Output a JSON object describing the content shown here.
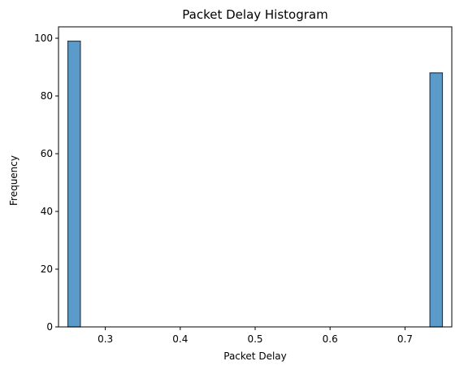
{
  "chart_data": {
    "type": "bar",
    "title": "Packet Delay Histogram",
    "xlabel": "Packet Delay",
    "ylabel": "Frequency",
    "xlim": [
      0.2375,
      0.7625
    ],
    "ylim": [
      0,
      103.95
    ],
    "xticks": [
      "0.3",
      "0.4",
      "0.5",
      "0.6",
      "0.7"
    ],
    "xtick_values": [
      0.3,
      0.4,
      0.5,
      0.6,
      0.7
    ],
    "yticks": [
      "0",
      "20",
      "40",
      "60",
      "80",
      "100"
    ],
    "ytick_values": [
      0,
      20,
      40,
      60,
      80,
      100
    ],
    "bins": [
      {
        "x0": 0.25,
        "x1": 0.2667,
        "count": 99
      },
      {
        "x0": 0.7333,
        "x1": 0.75,
        "count": 88
      }
    ],
    "bar_color": "#5b9bc9",
    "edge_color": "#2a3f52",
    "grid": false
  }
}
